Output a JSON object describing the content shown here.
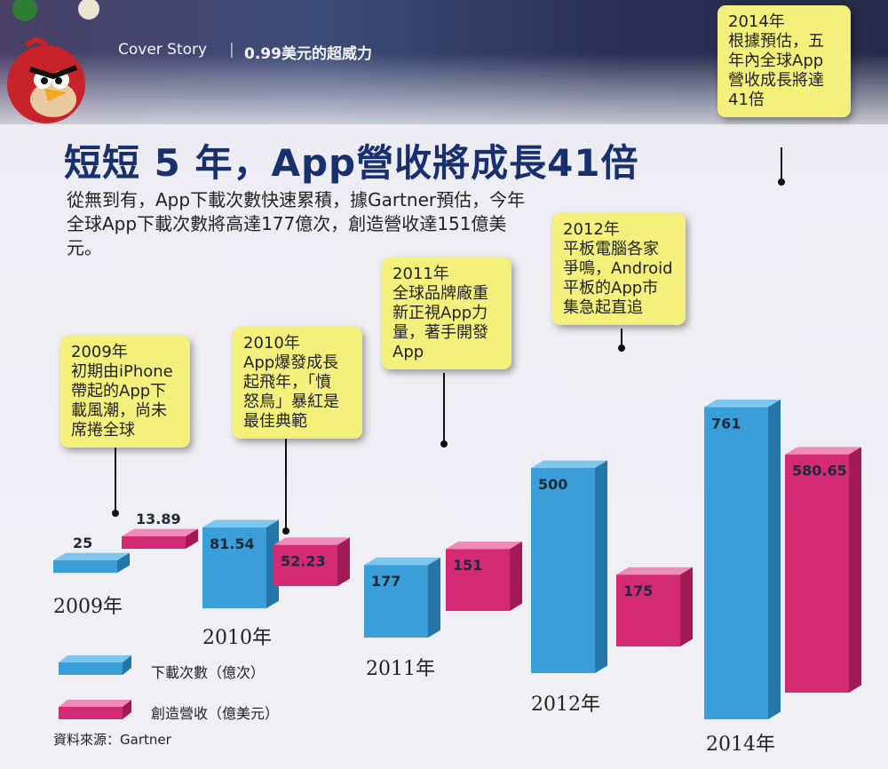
{
  "header": {
    "section": "Cover Story",
    "divider": "|",
    "headline": "0.99美元的超威力"
  },
  "title": "短短 5 年，App營收將成長41倍",
  "intro": "從無到有，App下載次數快速累積，據Gartner預估，今年全球App下載次數將高達177億次，創造營收達151億美元。",
  "callouts": [
    {
      "year": "2009年",
      "text": "初期由iPhone\n帶起的App下\n載風潮，尚未\n席捲全球"
    },
    {
      "year": "2010年",
      "text": "App爆發成長\n起飛年，「憤\n怒鳥」暴紅是\n最佳典範"
    },
    {
      "year": "2011年",
      "text": "全球品牌廠重\n新正視App力\n量，著手開發\nApp"
    },
    {
      "year": "2012年",
      "text": "平板電腦各家\n爭鳴，Android\n平板的App市\n集急起直追"
    },
    {
      "year": "2014年",
      "text": "根據預估，五\n年內全球App\n營收成長將達\n41倍"
    }
  ],
  "legend": [
    {
      "label": "下載次數（億次）",
      "color": "#3a9fd8"
    },
    {
      "label": "創造營收（億美元）",
      "color": "#d42a74"
    }
  ],
  "source": "資料來源：Gartner",
  "colors": {
    "downloads": "#3a9fd8",
    "revenue": "#d42a74",
    "callout": "#f3f07c",
    "title": "#18306e"
  },
  "chart_data": {
    "type": "bar",
    "categories": [
      "2009年",
      "2010年",
      "2011年",
      "2012年",
      "2014年"
    ],
    "series": [
      {
        "name": "下載次數（億次）",
        "values": [
          25,
          81.54,
          177,
          500,
          761
        ],
        "labels": [
          "25",
          "81.54",
          "177",
          "500",
          "761"
        ]
      },
      {
        "name": "創造營收（億美元）",
        "values": [
          13.89,
          52.23,
          151,
          175,
          580.65
        ],
        "labels": [
          "13.89",
          "52.23",
          "151",
          "175",
          "580.65"
        ]
      }
    ]
  }
}
